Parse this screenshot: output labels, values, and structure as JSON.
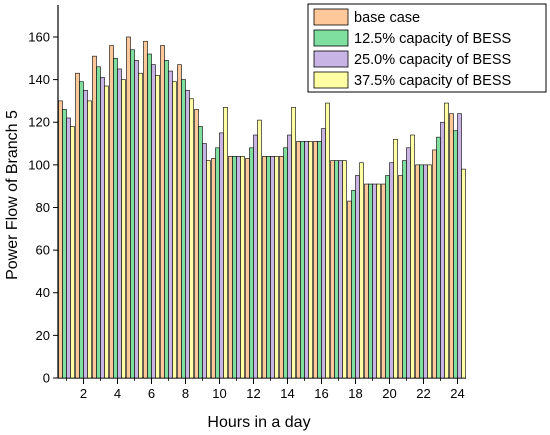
{
  "chart_data": {
    "type": "bar",
    "xlabel": "Hours in a day",
    "ylabel": "Power Flow of Branch 5",
    "ylim": [
      0,
      175
    ],
    "yticks": [
      0,
      20,
      40,
      60,
      80,
      100,
      120,
      140,
      160
    ],
    "xticks": [
      "2",
      "4",
      "6",
      "8",
      "10",
      "12",
      "14",
      "16",
      "18",
      "20",
      "22",
      "24"
    ],
    "categories": [
      "1",
      "2",
      "3",
      "4",
      "5",
      "6",
      "7",
      "8",
      "9",
      "10",
      "11",
      "12",
      "13",
      "14",
      "15",
      "16",
      "17",
      "18",
      "19",
      "20",
      "21",
      "22",
      "23",
      "24"
    ],
    "legend_position": "top-right",
    "grid": false,
    "series": [
      {
        "name": "base case",
        "color": "#FFC89A",
        "values": [
          130,
          143,
          151,
          156,
          160,
          158,
          156,
          147,
          126,
          103,
          104,
          103,
          104,
          104,
          111,
          111,
          102,
          83,
          91,
          91,
          95,
          100,
          107,
          124
        ]
      },
      {
        "name": "12.5% capacity of BESS",
        "color": "#7FDF9F",
        "values": [
          126,
          139,
          146,
          150,
          154,
          152,
          149,
          140,
          118,
          108,
          104,
          108,
          104,
          108,
          111,
          111,
          102,
          88,
          91,
          95,
          102,
          100,
          113,
          116
        ]
      },
      {
        "name": "25.0% capacity of BESS",
        "color": "#C9B4E6",
        "values": [
          122,
          135,
          141,
          145,
          149,
          147,
          144,
          135,
          110,
          115,
          104,
          114,
          104,
          114,
          111,
          117,
          102,
          95,
          91,
          101,
          108,
          100,
          120,
          124
        ]
      },
      {
        "name": "37.5% capacity of BESS",
        "color": "#FFFFA3",
        "values": [
          118,
          130,
          137,
          140,
          143,
          142,
          139,
          131,
          102,
          127,
          104,
          121,
          104,
          127,
          111,
          129,
          102,
          101,
          91,
          112,
          114,
          100,
          129,
          98
        ]
      }
    ]
  }
}
